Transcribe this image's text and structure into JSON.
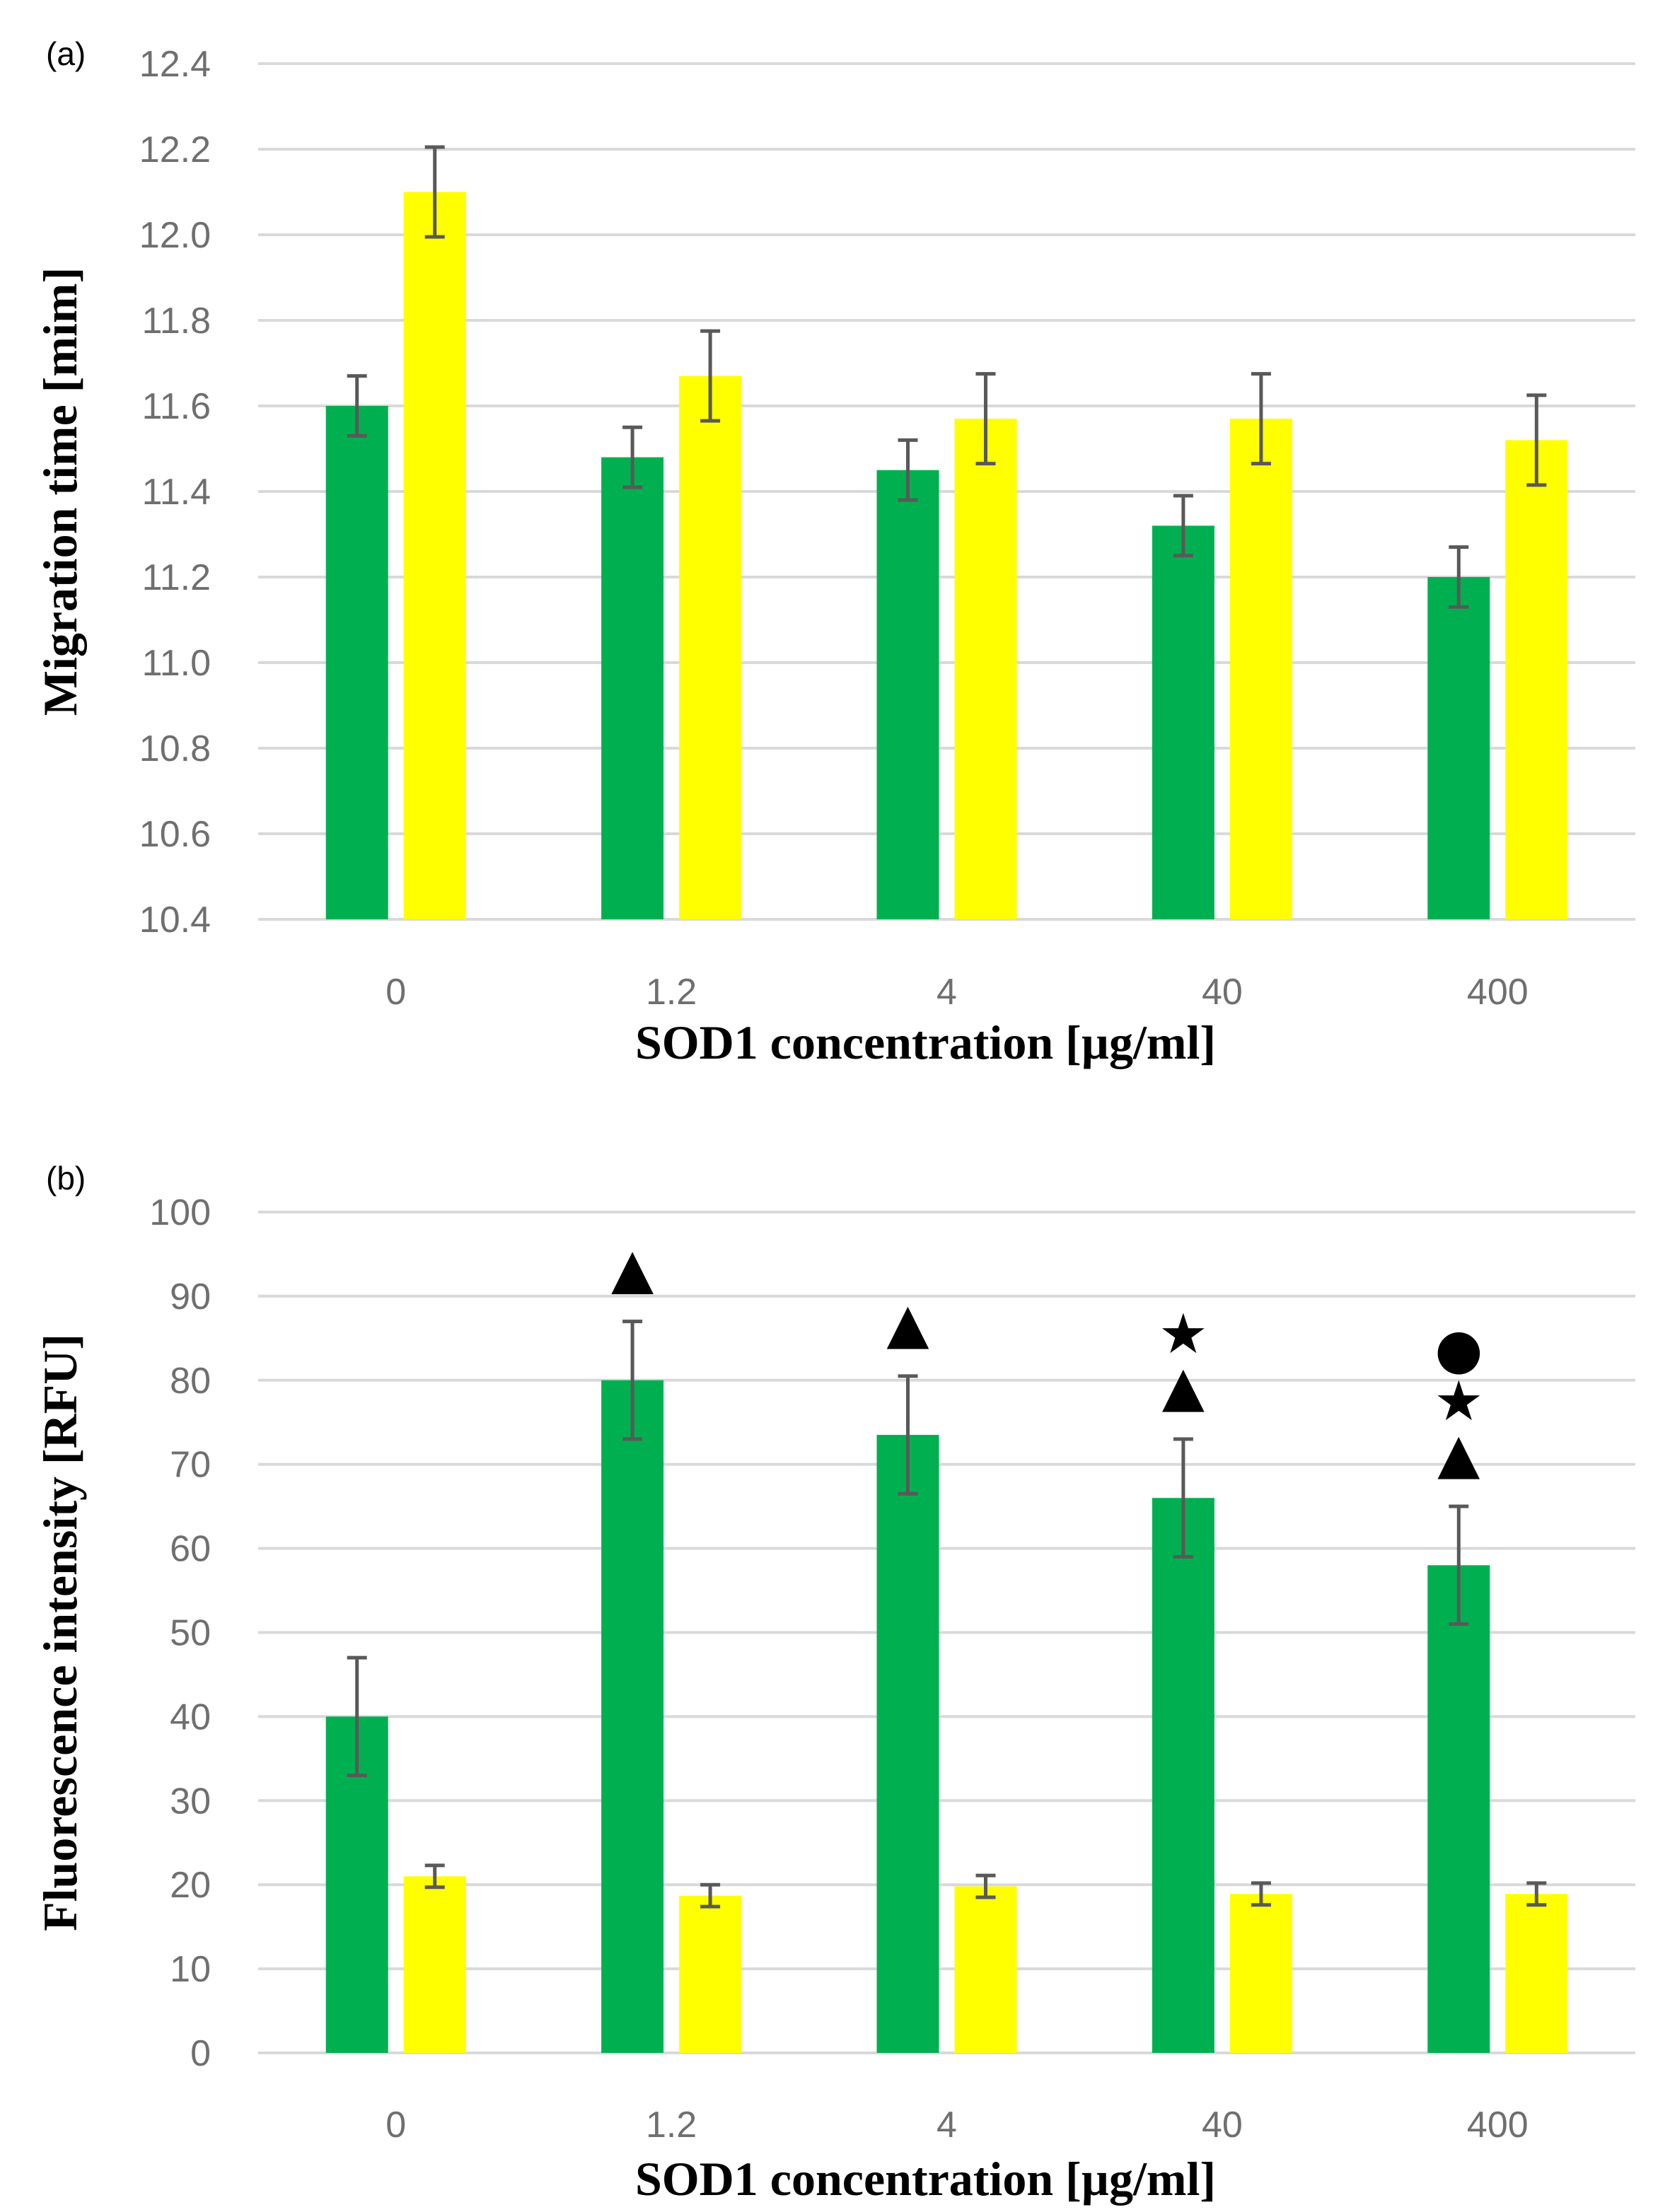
{
  "chart_data": [
    {
      "type": "bar",
      "panel_label": "(a)",
      "categories": [
        "0",
        "1.2",
        "4",
        "40",
        "400"
      ],
      "series": [
        {
          "name": "green",
          "color": "#00b050",
          "values": [
            11.6,
            11.48,
            11.45,
            11.32,
            11.2
          ],
          "errors": [
            0.07,
            0.07,
            0.07,
            0.07,
            0.07
          ]
        },
        {
          "name": "yellow",
          "color": "#ffff00",
          "values": [
            12.1,
            11.67,
            11.57,
            11.57,
            11.52
          ],
          "errors": [
            0.105,
            0.105,
            0.105,
            0.105,
            0.105
          ]
        }
      ],
      "xlabel": "SOD1 concentration [µg/ml]",
      "ylabel": "Migration time [mim]",
      "ylim": [
        10.4,
        12.4
      ],
      "yticks": [
        "10.4",
        "10.6",
        "10.8",
        "11.0",
        "11.2",
        "11.4",
        "11.6",
        "11.8",
        "12.0",
        "12.2",
        "12.4"
      ],
      "grid": true,
      "annotations": []
    },
    {
      "type": "bar",
      "panel_label": "(b)",
      "categories": [
        "0",
        "1.2",
        "4",
        "40",
        "400"
      ],
      "series": [
        {
          "name": "green",
          "color": "#00b050",
          "values": [
            40,
            80,
            73.5,
            66,
            58
          ],
          "errors": [
            7,
            7,
            7,
            7,
            7
          ]
        },
        {
          "name": "yellow",
          "color": "#ffff00",
          "values": [
            21,
            18.7,
            19.8,
            18.9,
            18.9
          ],
          "errors": [
            1.3,
            1.3,
            1.3,
            1.3,
            1.3
          ]
        }
      ],
      "xlabel": "SOD1 concentration [µg/ml]",
      "ylabel": "Fluorescence intensity [RFU]",
      "ylim": [
        0,
        100
      ],
      "yticks": [
        "0",
        "10",
        "20",
        "30",
        "40",
        "50",
        "60",
        "70",
        "80",
        "90",
        "100"
      ],
      "grid": true,
      "annotations": [
        {
          "category": 1,
          "markers": [
            "▲"
          ]
        },
        {
          "category": 2,
          "markers": [
            "▲"
          ]
        },
        {
          "category": 3,
          "markers": [
            "★",
            "▲"
          ]
        },
        {
          "category": 4,
          "markers": [
            "●",
            "★",
            "▲"
          ]
        }
      ]
    }
  ]
}
